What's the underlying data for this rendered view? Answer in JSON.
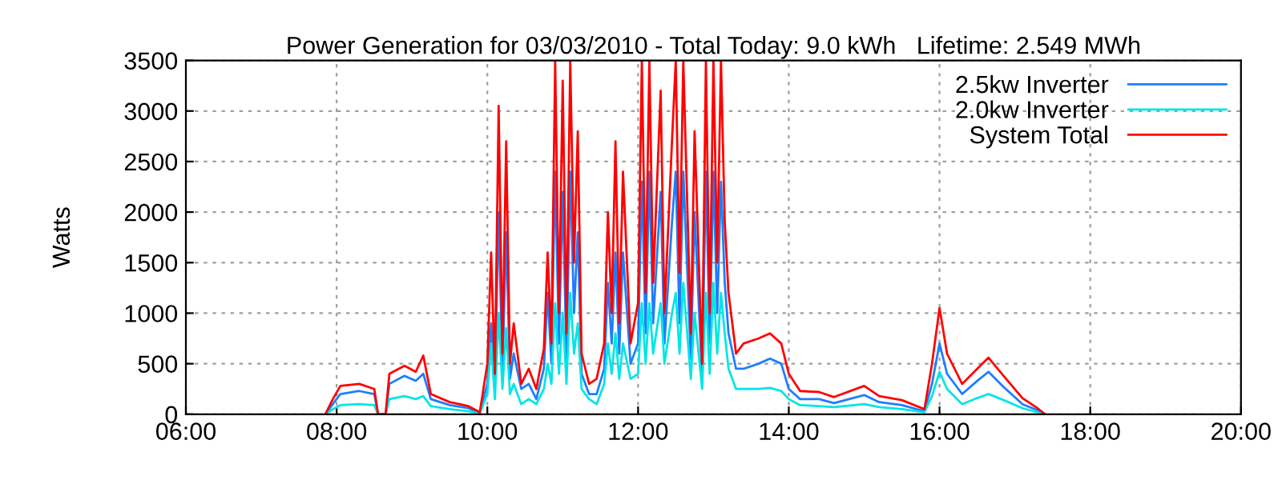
{
  "chart_data": {
    "type": "line",
    "title": "Power Generation for 03/03/2010 - Total Today: 9.0 kWh   Lifetime: 2.549 MWh",
    "ylabel": "Watts",
    "x": [
      7.85,
      7.95,
      8.05,
      8.3,
      8.5,
      8.55,
      8.65,
      8.7,
      8.9,
      9.05,
      9.15,
      9.25,
      9.5,
      9.75,
      9.9,
      10.0,
      10.05,
      10.1,
      10.15,
      10.2,
      10.25,
      10.3,
      10.35,
      10.45,
      10.55,
      10.65,
      10.75,
      10.8,
      10.85,
      10.9,
      10.95,
      11.0,
      11.05,
      11.1,
      11.15,
      11.2,
      11.25,
      11.35,
      11.45,
      11.55,
      11.6,
      11.65,
      11.7,
      11.75,
      11.8,
      11.9,
      12.0,
      12.05,
      12.1,
      12.15,
      12.2,
      12.3,
      12.35,
      12.45,
      12.5,
      12.55,
      12.6,
      12.7,
      12.75,
      12.85,
      12.9,
      12.95,
      13.0,
      13.05,
      13.1,
      13.15,
      13.2,
      13.3,
      13.4,
      13.6,
      13.75,
      13.9,
      14.0,
      14.15,
      14.4,
      14.6,
      15.0,
      15.2,
      15.5,
      15.8,
      15.9,
      16.0,
      16.1,
      16.3,
      16.5,
      16.65,
      16.85,
      17.1,
      17.3,
      17.4
    ],
    "series": [
      {
        "name": "2.5kw Inverter",
        "color": "#1e7dff",
        "values": [
          0,
          100,
          200,
          230,
          200,
          0,
          0,
          300,
          380,
          330,
          400,
          150,
          90,
          60,
          10,
          300,
          900,
          250,
          2000,
          400,
          1800,
          350,
          600,
          250,
          300,
          150,
          450,
          1200,
          500,
          2400,
          700,
          2200,
          550,
          2400,
          1000,
          1800,
          400,
          200,
          200,
          450,
          1300,
          700,
          1600,
          600,
          1600,
          500,
          700,
          2300,
          800,
          2400,
          900,
          2200,
          700,
          1900,
          2400,
          900,
          2400,
          550,
          2000,
          350,
          2400,
          700,
          2400,
          1000,
          2300,
          1300,
          800,
          450,
          450,
          500,
          550,
          500,
          250,
          150,
          150,
          110,
          190,
          120,
          90,
          30,
          300,
          700,
          400,
          200,
          330,
          420,
          270,
          100,
          40,
          0
        ]
      },
      {
        "name": "2.0kw Inverter",
        "color": "#00e5e5",
        "values": [
          0,
          50,
          90,
          100,
          90,
          0,
          0,
          150,
          180,
          150,
          180,
          80,
          50,
          30,
          10,
          200,
          700,
          150,
          1000,
          250,
          850,
          200,
          300,
          100,
          150,
          100,
          250,
          500,
          300,
          1100,
          400,
          1000,
          300,
          1200,
          600,
          900,
          250,
          150,
          100,
          300,
          700,
          400,
          800,
          350,
          700,
          350,
          400,
          1100,
          500,
          1100,
          600,
          1100,
          500,
          1000,
          1200,
          600,
          1300,
          350,
          1000,
          250,
          1200,
          400,
          1300,
          600,
          1200,
          800,
          450,
          250,
          250,
          250,
          260,
          230,
          150,
          90,
          80,
          70,
          100,
          70,
          50,
          20,
          180,
          420,
          250,
          100,
          160,
          200,
          140,
          60,
          20,
          0
        ]
      },
      {
        "name": "System Total",
        "color": "#ff0000",
        "values": [
          0,
          150,
          280,
          300,
          250,
          0,
          0,
          400,
          480,
          420,
          580,
          200,
          120,
          80,
          20,
          500,
          1600,
          400,
          3050,
          600,
          2700,
          500,
          900,
          300,
          450,
          250,
          650,
          1600,
          700,
          3500,
          1000,
          3300,
          800,
          3500,
          1500,
          2800,
          600,
          300,
          350,
          700,
          2000,
          1000,
          2700,
          900,
          2400,
          700,
          1100,
          3500,
          1200,
          3500,
          1300,
          3200,
          1000,
          2700,
          3500,
          1400,
          3500,
          800,
          2800,
          500,
          3500,
          1000,
          3500,
          1500,
          3500,
          1900,
          1200,
          600,
          700,
          750,
          800,
          700,
          400,
          230,
          220,
          170,
          280,
          180,
          140,
          50,
          500,
          1050,
          600,
          300,
          450,
          560,
          380,
          160,
          60,
          0
        ]
      }
    ],
    "xlim": [
      6,
      20
    ],
    "xticks": [
      {
        "value": 6,
        "label": "06:00"
      },
      {
        "value": 8,
        "label": "08:00"
      },
      {
        "value": 10,
        "label": "10:00"
      },
      {
        "value": 12,
        "label": "12:00"
      },
      {
        "value": 14,
        "label": "14:00"
      },
      {
        "value": 16,
        "label": "16:00"
      },
      {
        "value": 18,
        "label": "18:00"
      },
      {
        "value": 20,
        "label": "20:00"
      }
    ],
    "ylim": [
      0,
      3500
    ],
    "yticks": [
      0,
      500,
      1000,
      1500,
      2000,
      2500,
      3000,
      3500
    ],
    "grid": true,
    "legend": "top right",
    "line_style": "solid",
    "marker": "none"
  }
}
